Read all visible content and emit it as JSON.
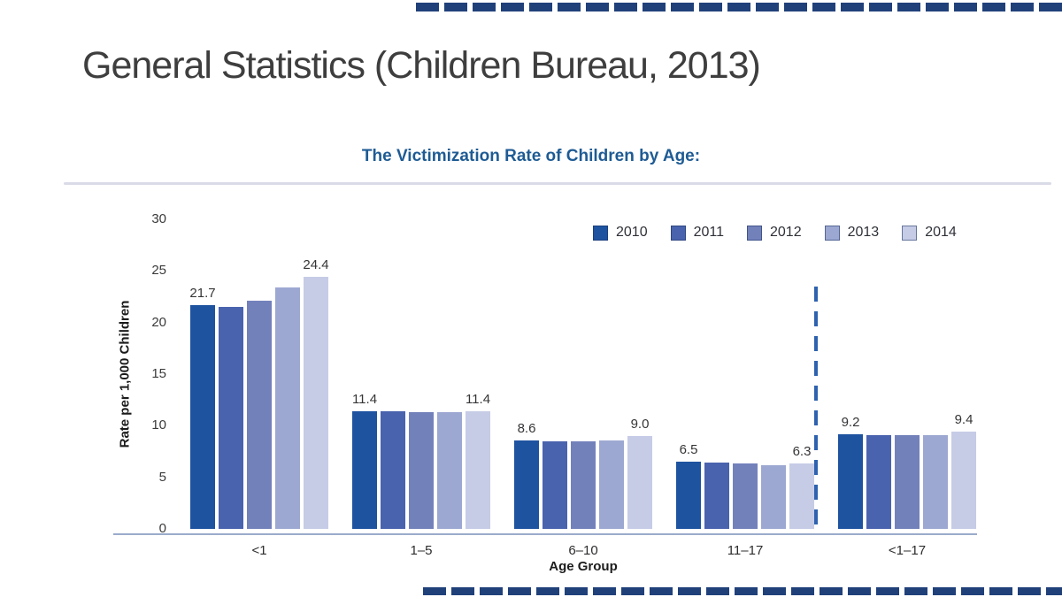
{
  "slide": {
    "title": "General Statistics (Children Bureau, 2013)"
  },
  "chart_data": {
    "type": "bar",
    "title": "The Victimization Rate of Children by Age:",
    "xlabel": "Age Group",
    "ylabel": "Rate per 1,000 Children",
    "ylim": [
      0,
      30
    ],
    "yticks": [
      0,
      5,
      10,
      15,
      20,
      25,
      30
    ],
    "grid": "off",
    "legend_position": "top-right",
    "categories": [
      "<1",
      "1–5",
      "6–10",
      "11–17",
      "<1–17"
    ],
    "series": [
      {
        "name": "2010",
        "color": "#1e53a0",
        "values": [
          21.7,
          11.4,
          8.6,
          6.5,
          9.2
        ]
      },
      {
        "name": "2011",
        "color": "#4a63ae",
        "values": [
          21.5,
          11.4,
          8.5,
          6.4,
          9.1
        ]
      },
      {
        "name": "2012",
        "color": "#7381bb",
        "values": [
          22.1,
          11.3,
          8.5,
          6.3,
          9.1
        ]
      },
      {
        "name": "2013",
        "color": "#9da8d2",
        "values": [
          23.4,
          11.3,
          8.6,
          6.2,
          9.1
        ]
      },
      {
        "name": "2014",
        "color": "#c6cce6",
        "values": [
          24.4,
          11.4,
          9.0,
          6.3,
          9.4
        ]
      }
    ],
    "data_labels": [
      [
        "21.7",
        "",
        "",
        "",
        "24.4"
      ],
      [
        "11.4",
        "",
        "",
        "",
        "11.4"
      ],
      [
        "8.6",
        "",
        "",
        "",
        "9.0"
      ],
      [
        "6.5",
        "",
        "",
        "",
        "6.3"
      ],
      [
        "9.2",
        "",
        "",
        "",
        "9.4"
      ]
    ],
    "separator": {
      "after_category": "11–17",
      "style": "dashed",
      "color": "#2e62ae"
    }
  },
  "colors": {
    "stripe_navy": "#20407a",
    "chart_title_blue": "#1e5b94",
    "axis_line": "#9aaccb",
    "heading_gray": "#3e3e3e"
  }
}
